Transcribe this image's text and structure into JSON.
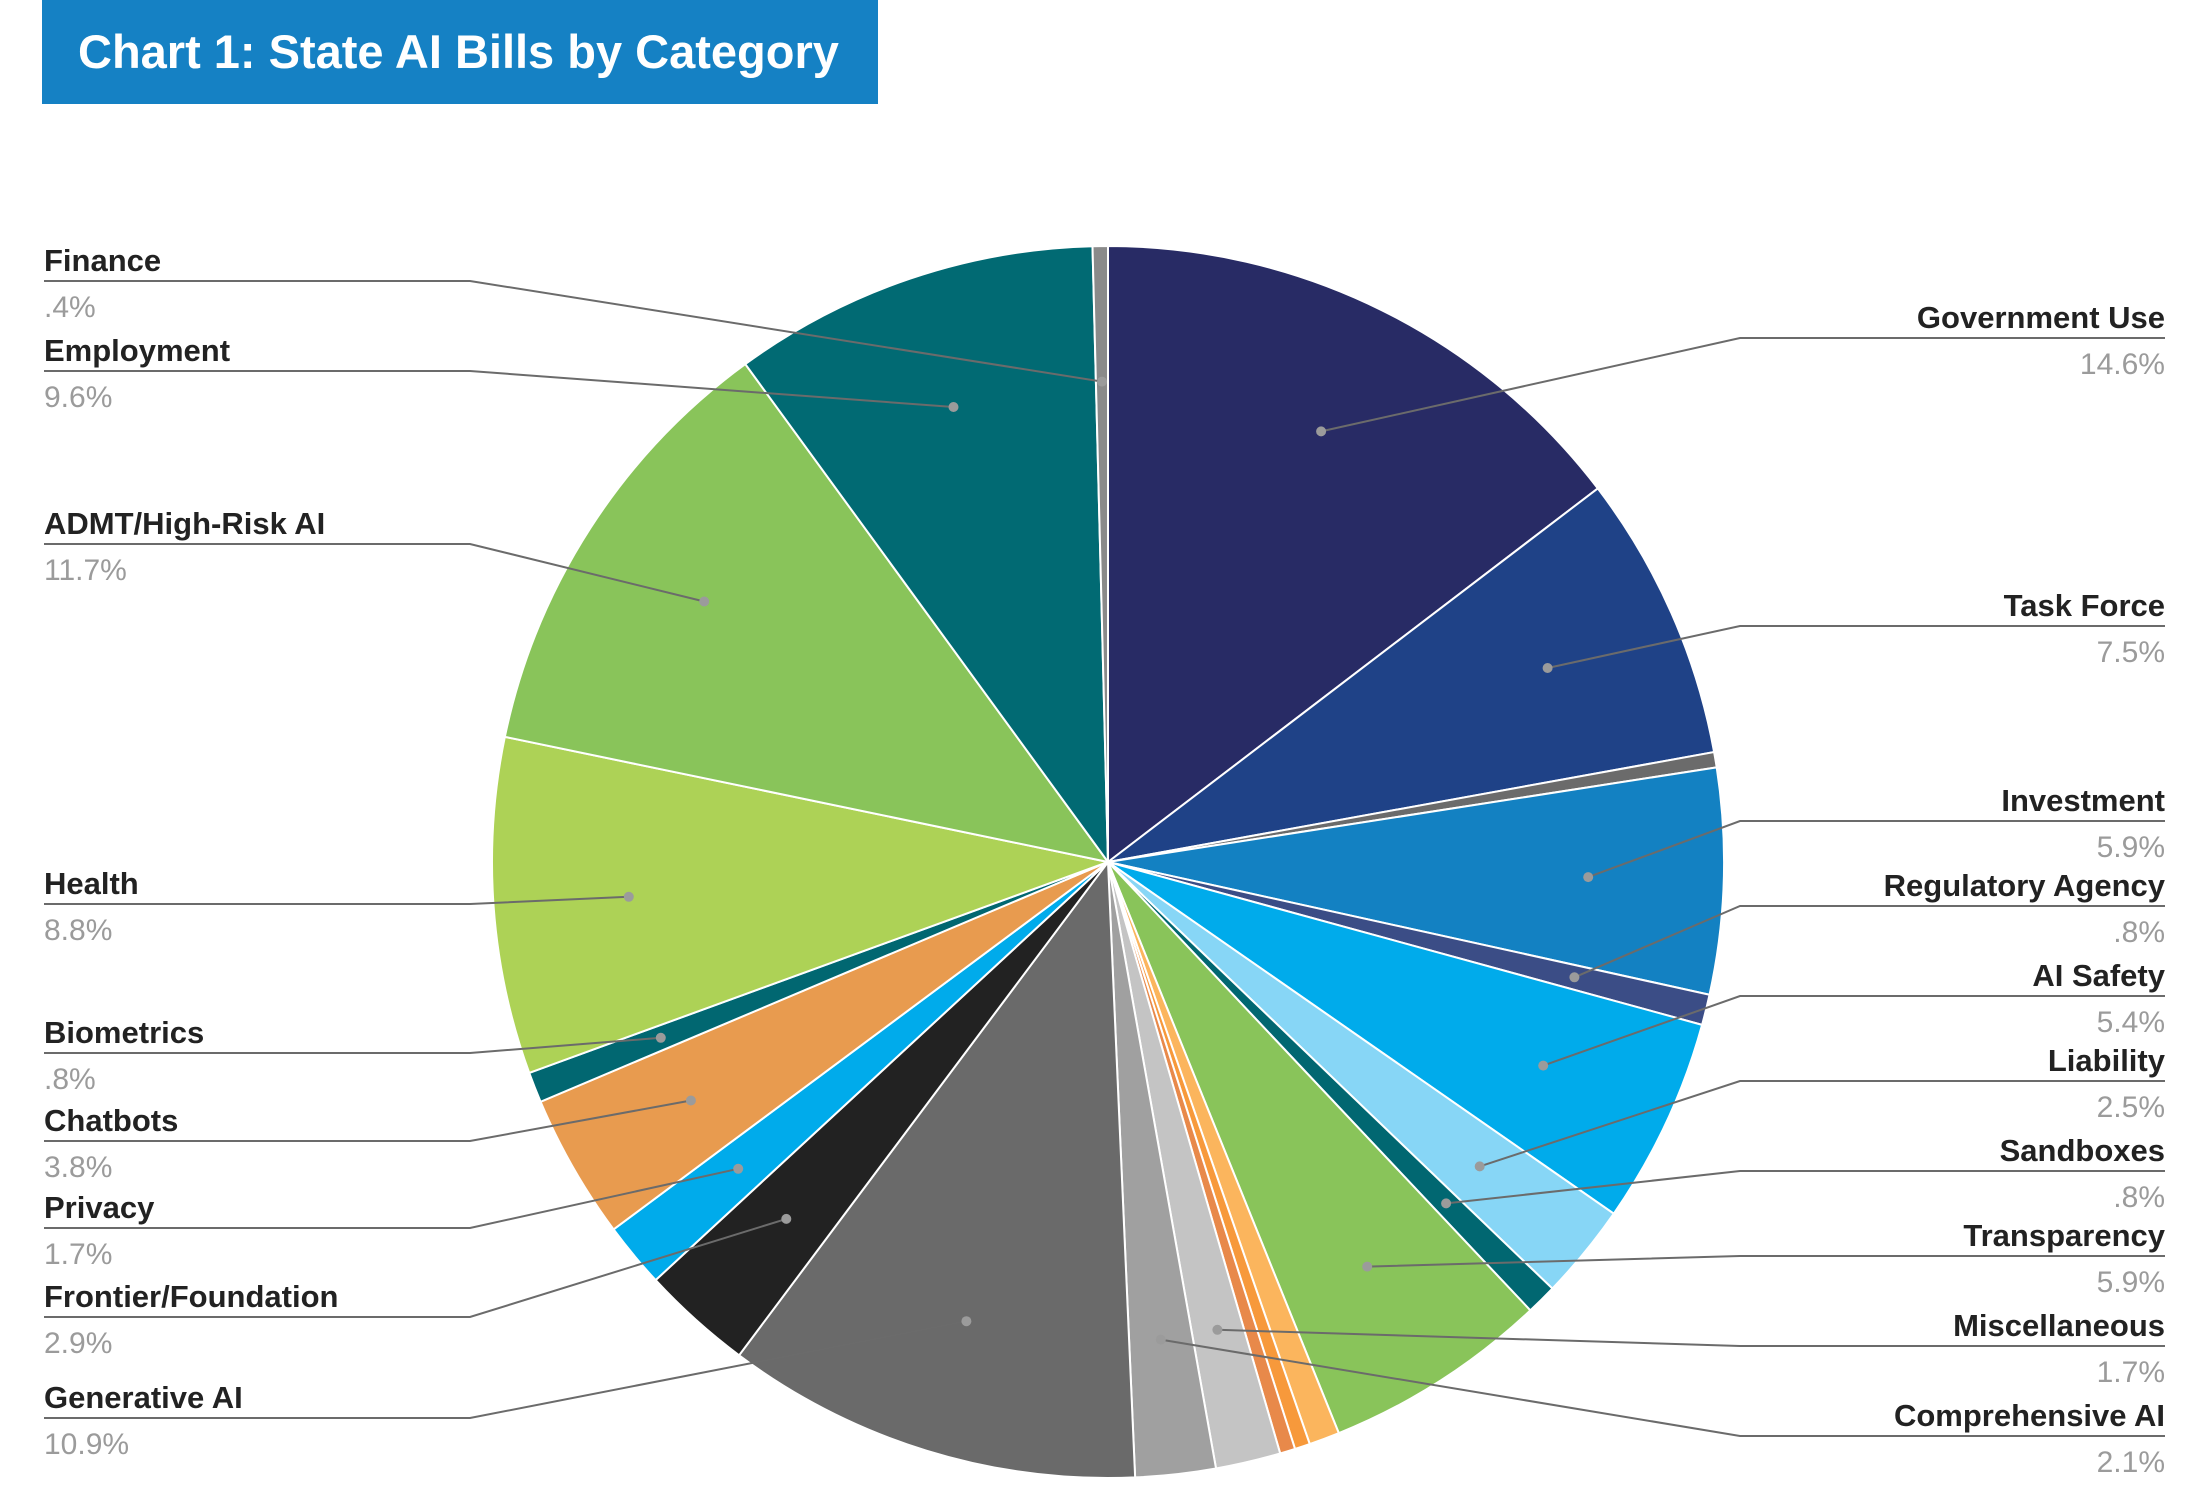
{
  "title": "Chart 1: State AI Bills by Category",
  "chart_data": {
    "type": "pie",
    "title": "Chart 1: State AI Bills by Category",
    "slices": [
      {
        "name": "Government Use",
        "value": 14.6,
        "label": "14.6%",
        "color": "#282b65",
        "side": "right"
      },
      {
        "name": "Task Force",
        "value": 7.5,
        "label": "7.5%",
        "color": "#1f4287",
        "side": "right"
      },
      {
        "name": "",
        "value": 0.4,
        "label": "",
        "color": "#6b6b6b",
        "side": "none"
      },
      {
        "name": "Investment",
        "value": 5.9,
        "label": "5.9%",
        "color": "#1381c2",
        "side": "right"
      },
      {
        "name": "Regulatory Agency",
        "value": 0.8,
        "label": ".8%",
        "color": "#3b4d86",
        "side": "right"
      },
      {
        "name": "AI Safety",
        "value": 5.4,
        "label": "5.4%",
        "color": "#00abeb",
        "side": "right"
      },
      {
        "name": "Liability",
        "value": 2.5,
        "label": "2.5%",
        "color": "#87d6f6",
        "side": "right"
      },
      {
        "name": "Sandboxes",
        "value": 0.8,
        "label": ".8%",
        "color": "#016771",
        "side": "right"
      },
      {
        "name": "Transparency",
        "value": 5.9,
        "label": "5.9%",
        "color": "#89c45a",
        "side": "right"
      },
      {
        "name": "",
        "value": 0.8,
        "label": "",
        "color": "#fbb55d",
        "side": "none"
      },
      {
        "name": "",
        "value": 0.4,
        "label": "",
        "color": "#f7993b",
        "side": "none"
      },
      {
        "name": "",
        "value": 0.4,
        "label": "",
        "color": "#e8894a",
        "side": "none"
      },
      {
        "name": "Miscellaneous",
        "value": 1.7,
        "label": "1.7%",
        "color": "#c4c4c4",
        "side": "right"
      },
      {
        "name": "Comprehensive AI",
        "value": 2.1,
        "label": "2.1%",
        "color": "#a0a0a0",
        "side": "right"
      },
      {
        "name": "Generative AI",
        "value": 10.9,
        "label": "10.9%",
        "color": "#6a6a6a",
        "side": "left"
      },
      {
        "name": "Frontier/Foundation",
        "value": 2.9,
        "label": "2.9%",
        "color": "#222222",
        "side": "left"
      },
      {
        "name": "Privacy",
        "value": 1.7,
        "label": "1.7%",
        "color": "#00abeb",
        "side": "left"
      },
      {
        "name": "Chatbots",
        "value": 3.8,
        "label": "3.8%",
        "color": "#e89b4f",
        "side": "left"
      },
      {
        "name": "Biometrics",
        "value": 0.8,
        "label": ".8%",
        "color": "#016771",
        "side": "left"
      },
      {
        "name": "Health",
        "value": 8.8,
        "label": "8.8%",
        "color": "#add256",
        "side": "left"
      },
      {
        "name": "ADMT/High-Risk AI",
        "value": 11.7,
        "label": "11.7%",
        "color": "#89c45a",
        "side": "left"
      },
      {
        "name": "Employment",
        "value": 9.6,
        "label": "9.6%",
        "color": "#016a73",
        "side": "left"
      },
      {
        "name": "Finance",
        "value": 0.4,
        "label": ".4%",
        "color": "#8a8a8a",
        "side": "left"
      }
    ],
    "legend": "none",
    "label_style": "leader-lines",
    "name_color": "#222222",
    "value_color": "#9b9b9b",
    "leader_color": "#6b6b6b"
  }
}
